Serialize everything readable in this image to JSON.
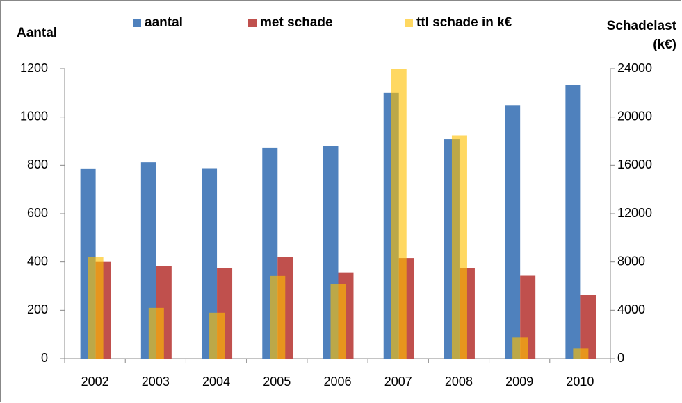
{
  "chart_data": {
    "type": "bar",
    "y_label": "Aantal",
    "y2_label": "Schadelast (k€)",
    "categories": [
      "2002",
      "2003",
      "2004",
      "2005",
      "2006",
      "2007",
      "2008",
      "2009",
      "2010"
    ],
    "series": [
      {
        "name": "aantal",
        "color": "#4f81bd",
        "values": [
          787,
          812,
          788,
          873,
          880,
          1100,
          907,
          1047,
          1133
        ]
      },
      {
        "name": "met schade",
        "color": "#c0504d",
        "values": [
          400,
          382,
          375,
          420,
          357,
          416,
          375,
          343,
          262
        ]
      },
      {
        "name": "ttl schade in k€",
        "color": "#ffc000",
        "axis": "y2",
        "values": [
          8400,
          4200,
          3800,
          6840,
          6200,
          24000,
          18460,
          1760,
          840
        ]
      }
    ],
    "ylim": [
      0,
      1200
    ],
    "yticks": [
      0,
      200,
      400,
      600,
      800,
      1000,
      1200
    ],
    "y2lim": [
      0,
      24000
    ],
    "y2ticks": [
      0,
      4000,
      8000,
      12000,
      16000,
      20000,
      24000
    ],
    "legend": "top",
    "grid": false
  }
}
